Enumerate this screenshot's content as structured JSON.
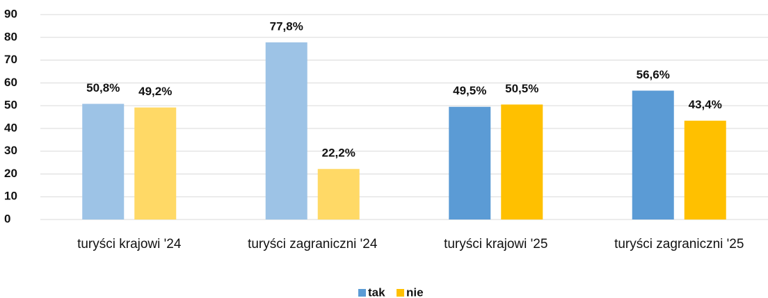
{
  "chart_data": {
    "type": "bar",
    "categories": [
      "turyści krajowi '24",
      "turyści zagraniczni '24",
      "turyści krajowi '25",
      "turyści zagraniczni '25"
    ],
    "series": [
      {
        "name": "tak",
        "color": "#5b9bd5",
        "colors": [
          "#9dc3e6",
          "#9dc3e6",
          "#5b9bd5",
          "#5b9bd5"
        ],
        "values": [
          50.8,
          77.8,
          49.5,
          56.6
        ],
        "value_labels": [
          "50,8%",
          "77,8%",
          "49,5%",
          "56,6%"
        ]
      },
      {
        "name": "nie",
        "color": "#ffc000",
        "colors": [
          "#ffd966",
          "#ffd966",
          "#ffc000",
          "#ffc000"
        ],
        "values": [
          49.2,
          22.2,
          50.5,
          43.4
        ],
        "value_labels": [
          "49,2%",
          "22,2%",
          "50,5%",
          "43,4%"
        ]
      }
    ],
    "ylim": [
      0,
      90
    ],
    "yticks": [
      0,
      10,
      20,
      30,
      40,
      50,
      60,
      70,
      80,
      90
    ],
    "grid": true,
    "legend": "bottom"
  }
}
